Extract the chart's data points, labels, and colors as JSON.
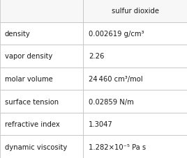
{
  "header_left": "",
  "header_right": "sulfur dioxide",
  "rows": [
    {
      "property": "density",
      "value": "0.002619 g/cm³"
    },
    {
      "property": "vapor density",
      "value": "2.26"
    },
    {
      "property": "molar volume",
      "value": "24 460 cm³/mol"
    },
    {
      "property": "surface tension",
      "value": "0.02859 N/m"
    },
    {
      "property": "refractive index",
      "value": "1.3047"
    },
    {
      "property": "dynamic viscosity",
      "value": "1.282×10⁻⁵ Pa s"
    }
  ],
  "bg_color": "#ffffff",
  "header_bg": "#f7f7f7",
  "row_bg": "#ffffff",
  "grid_color": "#bbbbbb",
  "text_color": "#1a1a1a",
  "font_size": 7.2,
  "col_split": 0.445,
  "fig_width": 2.68,
  "fig_height": 2.28,
  "dpi": 100
}
